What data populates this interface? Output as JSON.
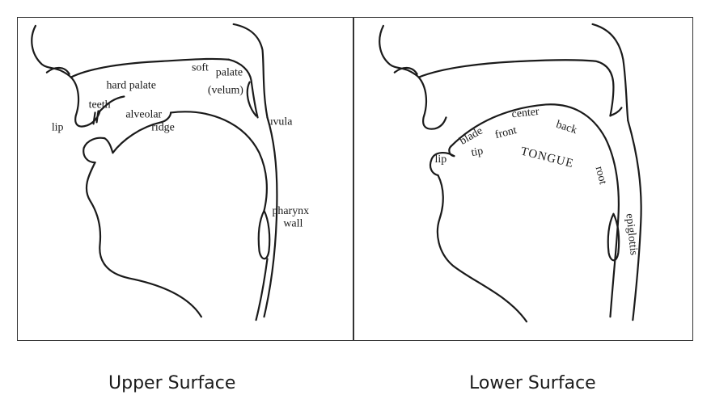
{
  "upper_panel": {
    "caption": "Upper Surface",
    "labels": {
      "soft": "soft",
      "palate": "palate",
      "hard_palate": "hard palate",
      "velum": "(velum)",
      "teeth": "teeth",
      "lip": "lip",
      "alveolar": "alveolar",
      "ridge": "ridge",
      "uvula": "uvula",
      "pharynx": "pharynx",
      "wall": "wall"
    }
  },
  "lower_panel": {
    "caption": "Lower Surface",
    "labels": {
      "center": "center",
      "blade": "blade",
      "front": "front",
      "back": "back",
      "lip": "lip",
      "tip": "tip",
      "tongue": "TONGUE",
      "root": "root",
      "epiglottis": "epiglottis"
    }
  }
}
